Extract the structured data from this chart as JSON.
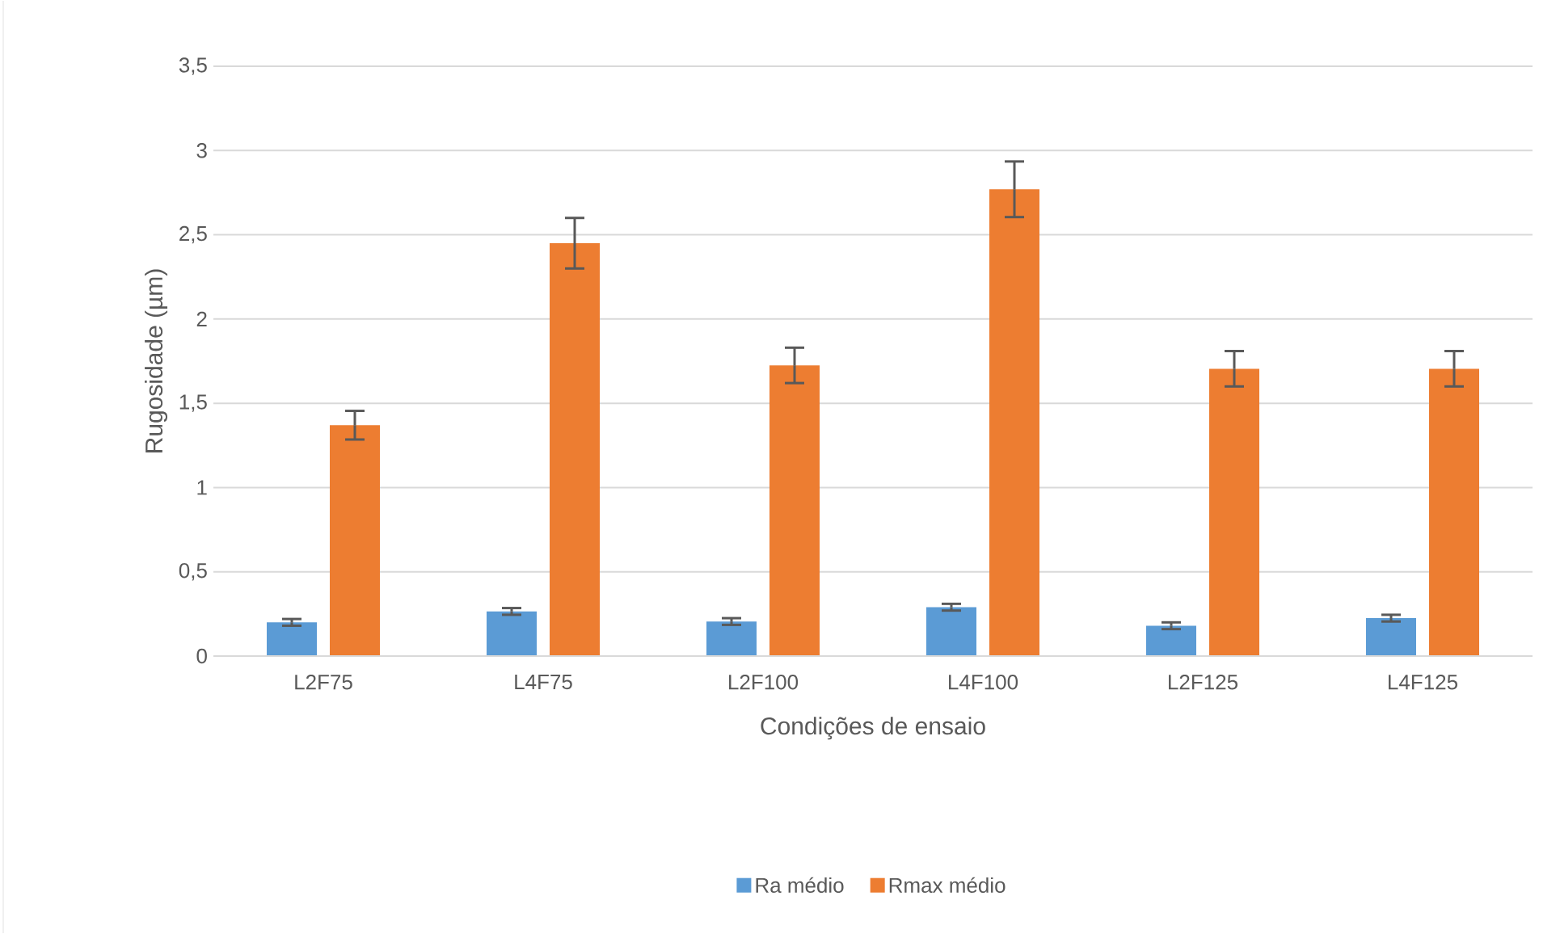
{
  "chart_data": {
    "type": "bar",
    "xlabel": "Condições de ensaio",
    "ylabel": "Rugosidade (µm)",
    "categories": [
      "L2F75",
      "L4F75",
      "L2F100",
      "L4F100",
      "L2F125",
      "L4F125"
    ],
    "series": [
      {
        "name": "Ra médio",
        "color": "#5b9bd5",
        "values": [
          0.2,
          0.265,
          0.205,
          0.29,
          0.18,
          0.225
        ],
        "errors": [
          0.02,
          0.02,
          0.02,
          0.02,
          0.02,
          0.02
        ]
      },
      {
        "name": "Rmax médio",
        "color": "#ed7d31",
        "values": [
          1.37,
          2.45,
          1.725,
          2.77,
          1.705,
          1.705
        ],
        "errors": [
          0.085,
          0.15,
          0.105,
          0.165,
          0.105,
          0.105
        ]
      }
    ],
    "ylim": [
      0,
      3.5
    ],
    "yticks": [
      0,
      {
        "value": 0.5,
        "label": "0,5"
      },
      1,
      {
        "value": 1.5,
        "label": "1,5"
      },
      2,
      {
        "value": 2.5,
        "label": "2,5"
      },
      3,
      {
        "value": 3.5,
        "label": "3,5"
      }
    ],
    "grid": "y",
    "legend": "bottom"
  }
}
